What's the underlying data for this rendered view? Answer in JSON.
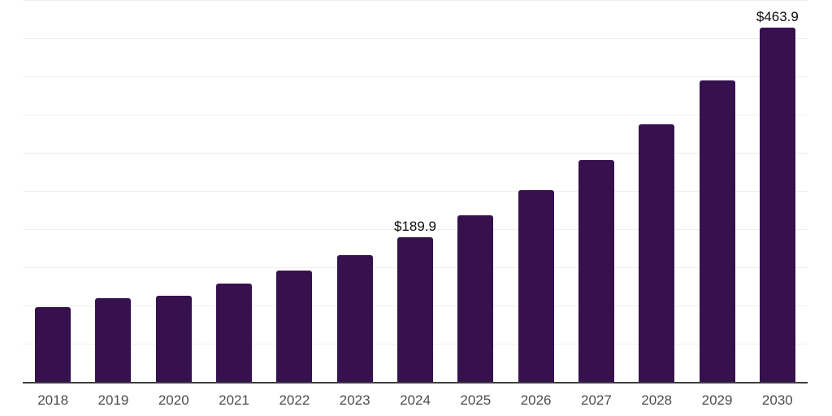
{
  "chart_data": {
    "type": "bar",
    "title": "",
    "xlabel": "",
    "ylabel": "",
    "categories": [
      "2018",
      "2019",
      "2020",
      "2021",
      "2022",
      "2023",
      "2024",
      "2025",
      "2026",
      "2027",
      "2028",
      "2029",
      "2030"
    ],
    "values": [
      97.9,
      109.2,
      113.0,
      129.1,
      145.8,
      166.3,
      189.9,
      218.5,
      251.4,
      290.3,
      337.6,
      394.2,
      463.9
    ],
    "point_labels": [
      "",
      "",
      "",
      "",
      "",
      "",
      "$189.9",
      "",
      "",
      "",
      "",
      "",
      "$463.9"
    ],
    "ylim": [
      0,
      500
    ],
    "gridline_interval": 50,
    "grid": "horizontal",
    "legend_position": "none",
    "y_tick_labels_visible": false,
    "colors": {
      "bar": "#36114E",
      "axis_line": "#3D3D3D",
      "gridline": "#EFEFEF",
      "tick_label": "#4D4D4D",
      "value_label": "#0E0E0E",
      "background": "#FFFFFF"
    }
  }
}
